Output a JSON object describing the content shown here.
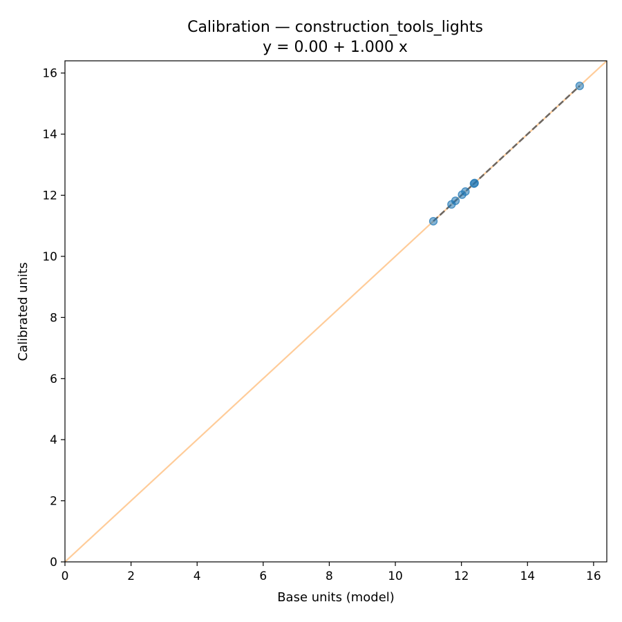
{
  "chart_data": {
    "type": "scatter",
    "title": "Calibration — construction_tools_lights",
    "subtitle": "y = 0.00 + 1.000 x",
    "xlabel": "Base units (model)",
    "ylabel": "Calibrated units",
    "xlim": [
      0,
      16.4
    ],
    "ylim": [
      0,
      16.4
    ],
    "xticks": [
      0,
      2,
      4,
      6,
      8,
      10,
      12,
      14,
      16
    ],
    "yticks": [
      0,
      2,
      4,
      6,
      8,
      10,
      12,
      14,
      16
    ],
    "grid": false,
    "points": [
      {
        "x": 11.15,
        "y": 11.15
      },
      {
        "x": 11.7,
        "y": 11.7
      },
      {
        "x": 11.82,
        "y": 11.82
      },
      {
        "x": 12.02,
        "y": 12.02
      },
      {
        "x": 12.12,
        "y": 12.12
      },
      {
        "x": 12.38,
        "y": 12.38
      },
      {
        "x": 12.4,
        "y": 12.4
      },
      {
        "x": 15.58,
        "y": 15.58
      }
    ],
    "identity_line": {
      "x": [
        0,
        16.4
      ],
      "y": [
        0,
        16.4
      ],
      "color": "#ffbb78"
    },
    "fit_line": {
      "intercept": 0.0,
      "slope": 1.0,
      "x_range": [
        11.15,
        15.58
      ],
      "color": "#555555"
    },
    "point_color": "#1f77b4"
  }
}
